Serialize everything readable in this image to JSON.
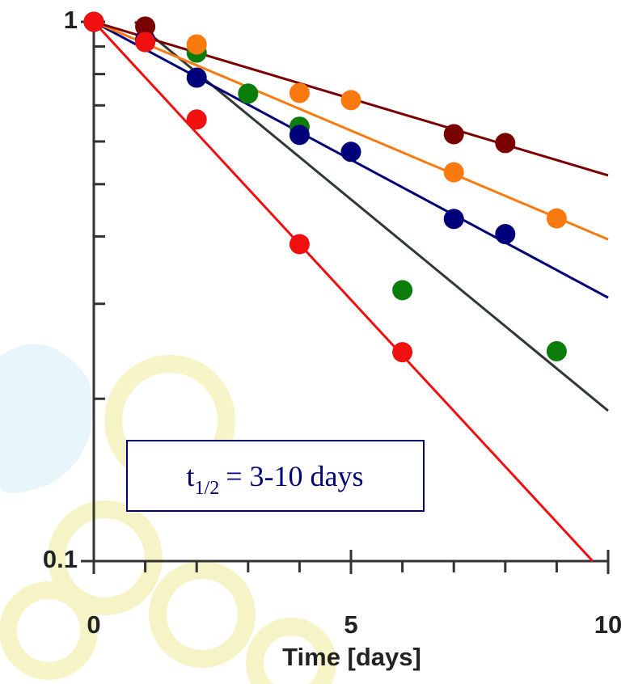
{
  "chart_data": {
    "type": "scatter-fit",
    "xlabel": "Time [days]",
    "xlim": [
      0,
      10
    ],
    "xticks": [
      0,
      5,
      10
    ],
    "xminor_ticks": [
      1,
      2,
      3,
      4,
      6,
      7,
      8,
      9
    ],
    "ylim": [
      0.1,
      1
    ],
    "yticks": [
      0.1,
      1
    ],
    "yminor_ticks": [
      0.2,
      0.3,
      0.4,
      0.5,
      0.6,
      0.7,
      0.8,
      0.9
    ],
    "log_y": true,
    "annotation": {
      "text": "t",
      "subscript": "1/2",
      "rest": "= 3-10 days"
    },
    "series": [
      {
        "color": "#0b7d0b",
        "line_color": "#2f3a33",
        "x": [
          0,
          2,
          3,
          4,
          6,
          9
        ],
        "values": [
          1,
          0.877,
          0.736,
          0.639,
          0.318,
          0.245
        ],
        "fit_x": [
          0.8,
          10
        ],
        "fit_values": [
          1,
          0.19
        ]
      },
      {
        "color": "#00007a",
        "line_color": "#00007a",
        "x": [
          0,
          1,
          2,
          4,
          5,
          7,
          8
        ],
        "values": [
          1,
          0.927,
          0.788,
          0.617,
          0.574,
          0.431,
          0.404
        ],
        "fit_x": [
          0,
          10
        ],
        "fit_values": [
          1,
          0.308
        ]
      },
      {
        "color": "#fb7a10",
        "line_color": "#fb7a10",
        "x": [
          0,
          2,
          4,
          5,
          7,
          9
        ],
        "values": [
          1,
          0.908,
          0.738,
          0.716,
          0.526,
          0.432
        ],
        "fit_x": [
          0,
          10
        ],
        "fit_values": [
          1,
          0.395
        ]
      },
      {
        "color": "#7a0000",
        "line_color": "#7a0000",
        "x": [
          0,
          1,
          7,
          8
        ],
        "values": [
          1,
          0.98,
          0.619,
          0.596
        ],
        "fit_x": [
          0,
          10
        ],
        "fit_values": [
          1,
          0.519
        ]
      },
      {
        "color": "#f01010",
        "line_color": "#f01010",
        "x": [
          0,
          1,
          2,
          4,
          6
        ],
        "values": [
          1,
          0.917,
          0.659,
          0.387,
          0.244
        ],
        "fit_x": [
          0,
          9.7
        ],
        "fit_values": [
          1,
          0.1
        ]
      }
    ]
  }
}
